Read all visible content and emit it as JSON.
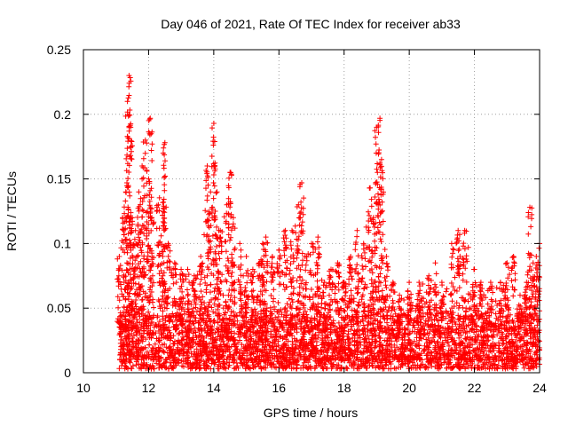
{
  "chart_data": {
    "type": "scatter",
    "title": "Day 046 of 2021, Rate Of TEC Index for receiver ab33",
    "xlabel": "GPS time / hours",
    "ylabel": "ROTI / TECUs",
    "xlim": [
      10,
      24
    ],
    "ylim": [
      0,
      0.25
    ],
    "x_ticks": [
      "10",
      "12",
      "14",
      "16",
      "18",
      "20",
      "22",
      "24"
    ],
    "y_ticks": [
      "0",
      "0.05",
      "0.1",
      "0.15",
      "0.2",
      "0.25"
    ],
    "grid": true,
    "marker": "+",
    "color": "#ff0000",
    "series": [
      {
        "x": [
          11.1,
          11.2,
          11.3,
          11.35,
          11.4,
          11.45,
          11.5,
          11.6,
          11.7,
          11.8,
          11.9,
          12.0,
          12.05,
          12.1,
          12.3,
          12.45,
          12.5,
          12.6,
          12.8,
          13.0,
          13.2,
          13.4,
          13.6,
          13.8,
          13.9,
          14.0,
          14.1,
          14.2,
          14.4,
          14.5,
          14.6,
          14.8,
          15.0,
          15.2,
          15.4,
          15.5,
          15.6,
          15.8,
          16.0,
          16.2,
          16.4,
          16.6,
          16.7,
          16.8,
          17.0,
          17.2,
          17.4,
          17.6,
          17.8,
          18.0,
          18.2,
          18.4,
          18.6,
          18.8,
          18.9,
          19.0,
          19.1,
          19.15,
          19.3,
          19.5,
          19.7,
          20.0,
          20.3,
          20.6,
          20.8,
          21.0,
          21.3,
          21.5,
          21.7,
          22.0,
          22.2,
          22.5,
          22.8,
          23.0,
          23.2,
          23.4,
          23.6,
          23.7,
          23.8,
          23.9,
          24.0
        ],
        "y": [
          0.09,
          0.12,
          0.14,
          0.21,
          0.23,
          0.19,
          0.12,
          0.11,
          0.14,
          0.16,
          0.18,
          0.15,
          0.197,
          0.12,
          0.13,
          0.17,
          0.178,
          0.1,
          0.085,
          0.08,
          0.08,
          0.075,
          0.09,
          0.16,
          0.14,
          0.193,
          0.14,
          0.11,
          0.13,
          0.155,
          0.12,
          0.1,
          0.09,
          0.08,
          0.085,
          0.1,
          0.105,
          0.09,
          0.095,
          0.11,
          0.11,
          0.13,
          0.147,
          0.09,
          0.1,
          0.105,
          0.07,
          0.08,
          0.085,
          0.07,
          0.09,
          0.11,
          0.1,
          0.143,
          0.12,
          0.19,
          0.197,
          0.165,
          0.09,
          0.07,
          0.06,
          0.07,
          0.07,
          0.075,
          0.085,
          0.07,
          0.1,
          0.11,
          0.11,
          0.08,
          0.07,
          0.07,
          0.07,
          0.085,
          0.09,
          0.06,
          0.07,
          0.128,
          0.085,
          0.09,
          0.1
        ]
      }
    ],
    "baseline_band": [
      0.003,
      0.045
    ]
  }
}
